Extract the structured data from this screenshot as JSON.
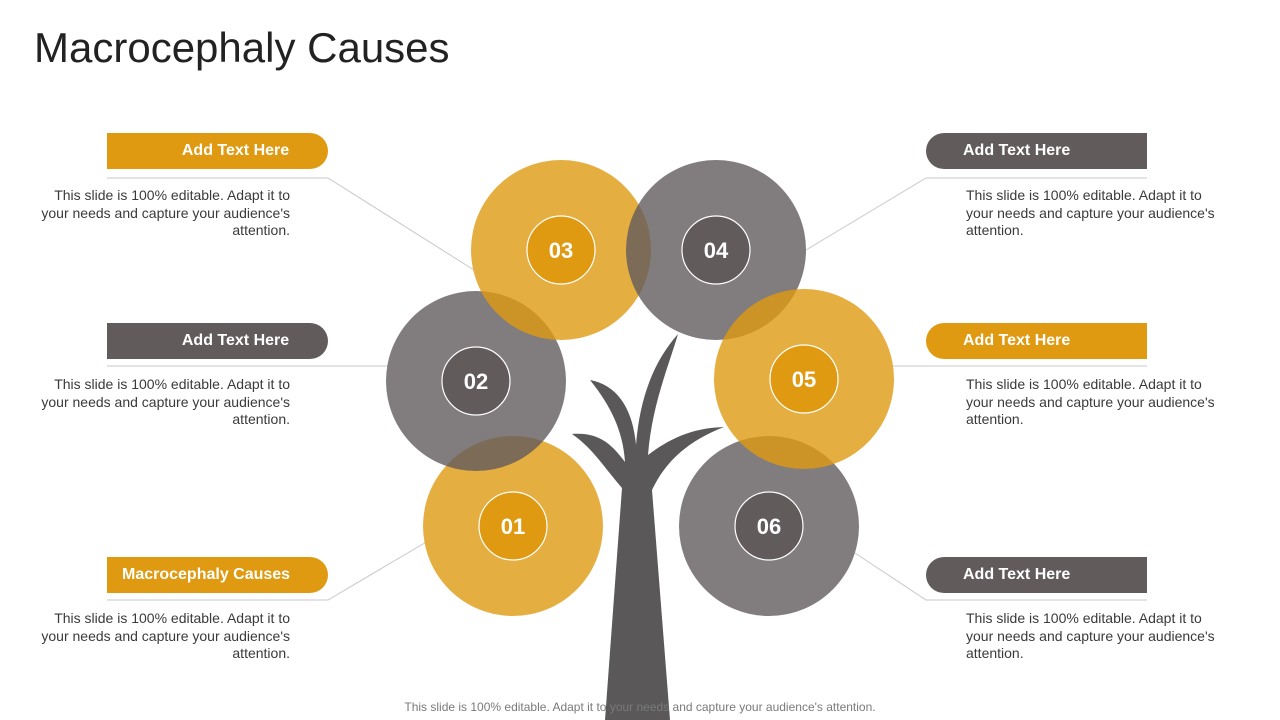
{
  "title": "Macrocephaly Causes",
  "colors": {
    "gold": "#df9a12",
    "gray": "#625b5c",
    "trunk": "#5a5858"
  },
  "items": [
    {
      "number": "01",
      "heading": "Macrocephaly Causes",
      "text": "This slide is 100% editable.  Adapt it to your needs and capture your audience's attention."
    },
    {
      "number": "02",
      "heading": "Add Text Here",
      "text": "This slide is 100% editable.  Adapt it to your needs and capture your audience's attention."
    },
    {
      "number": "03",
      "heading": "Add Text Here",
      "text": "This slide is 100% editable.  Adapt it to your needs and capture your audience's attention."
    },
    {
      "number": "04",
      "heading": "Add Text Here",
      "text": "This slide is 100% editable.  Adapt it to your needs and capture your audience's attention."
    },
    {
      "number": "05",
      "heading": "Add Text Here",
      "text": "This slide is 100% editable.  Adapt it to your needs and capture your audience's attention."
    },
    {
      "number": "06",
      "heading": "Add Text Here",
      "text": "This slide is 100% editable.  Adapt it to your needs and capture your audience's attention."
    }
  ],
  "footer": "This slide is 100% editable. Adapt it to your needs and capture your audience's attention."
}
